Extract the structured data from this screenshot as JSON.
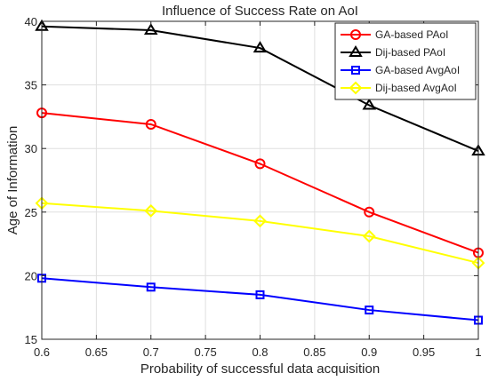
{
  "chart_data": {
    "type": "line",
    "title": "Influence of Success Rate on AoI",
    "xlabel": "Probability of successful data acquisition",
    "ylabel": "Age of Information",
    "xlim": [
      0.6,
      1.0
    ],
    "ylim": [
      15,
      40
    ],
    "x": [
      0.6,
      0.7,
      0.8,
      0.9,
      1.0
    ],
    "xticks": [
      "0.6",
      "0.65",
      "0.7",
      "0.75",
      "0.8",
      "0.85",
      "0.9",
      "0.95",
      "1"
    ],
    "yticks": [
      "15",
      "20",
      "25",
      "30",
      "35",
      "40"
    ],
    "grid": true,
    "legend_position": "top-right",
    "series": [
      {
        "name": "GA-based PAoI",
        "values": [
          32.8,
          31.9,
          28.8,
          25.0,
          21.8
        ],
        "color": "#ff0000",
        "marker": "circle"
      },
      {
        "name": "Dij-based PAoI",
        "values": [
          39.6,
          39.3,
          37.9,
          33.4,
          29.8
        ],
        "color": "#000000",
        "marker": "triangle"
      },
      {
        "name": "GA-based AvgAoI",
        "values": [
          19.8,
          19.1,
          18.5,
          17.3,
          16.5
        ],
        "color": "#0000ff",
        "marker": "square"
      },
      {
        "name": "Dij-based AvgAoI",
        "values": [
          25.7,
          25.1,
          24.3,
          23.1,
          21.0
        ],
        "color": "#ffff00",
        "marker": "diamond"
      }
    ]
  }
}
